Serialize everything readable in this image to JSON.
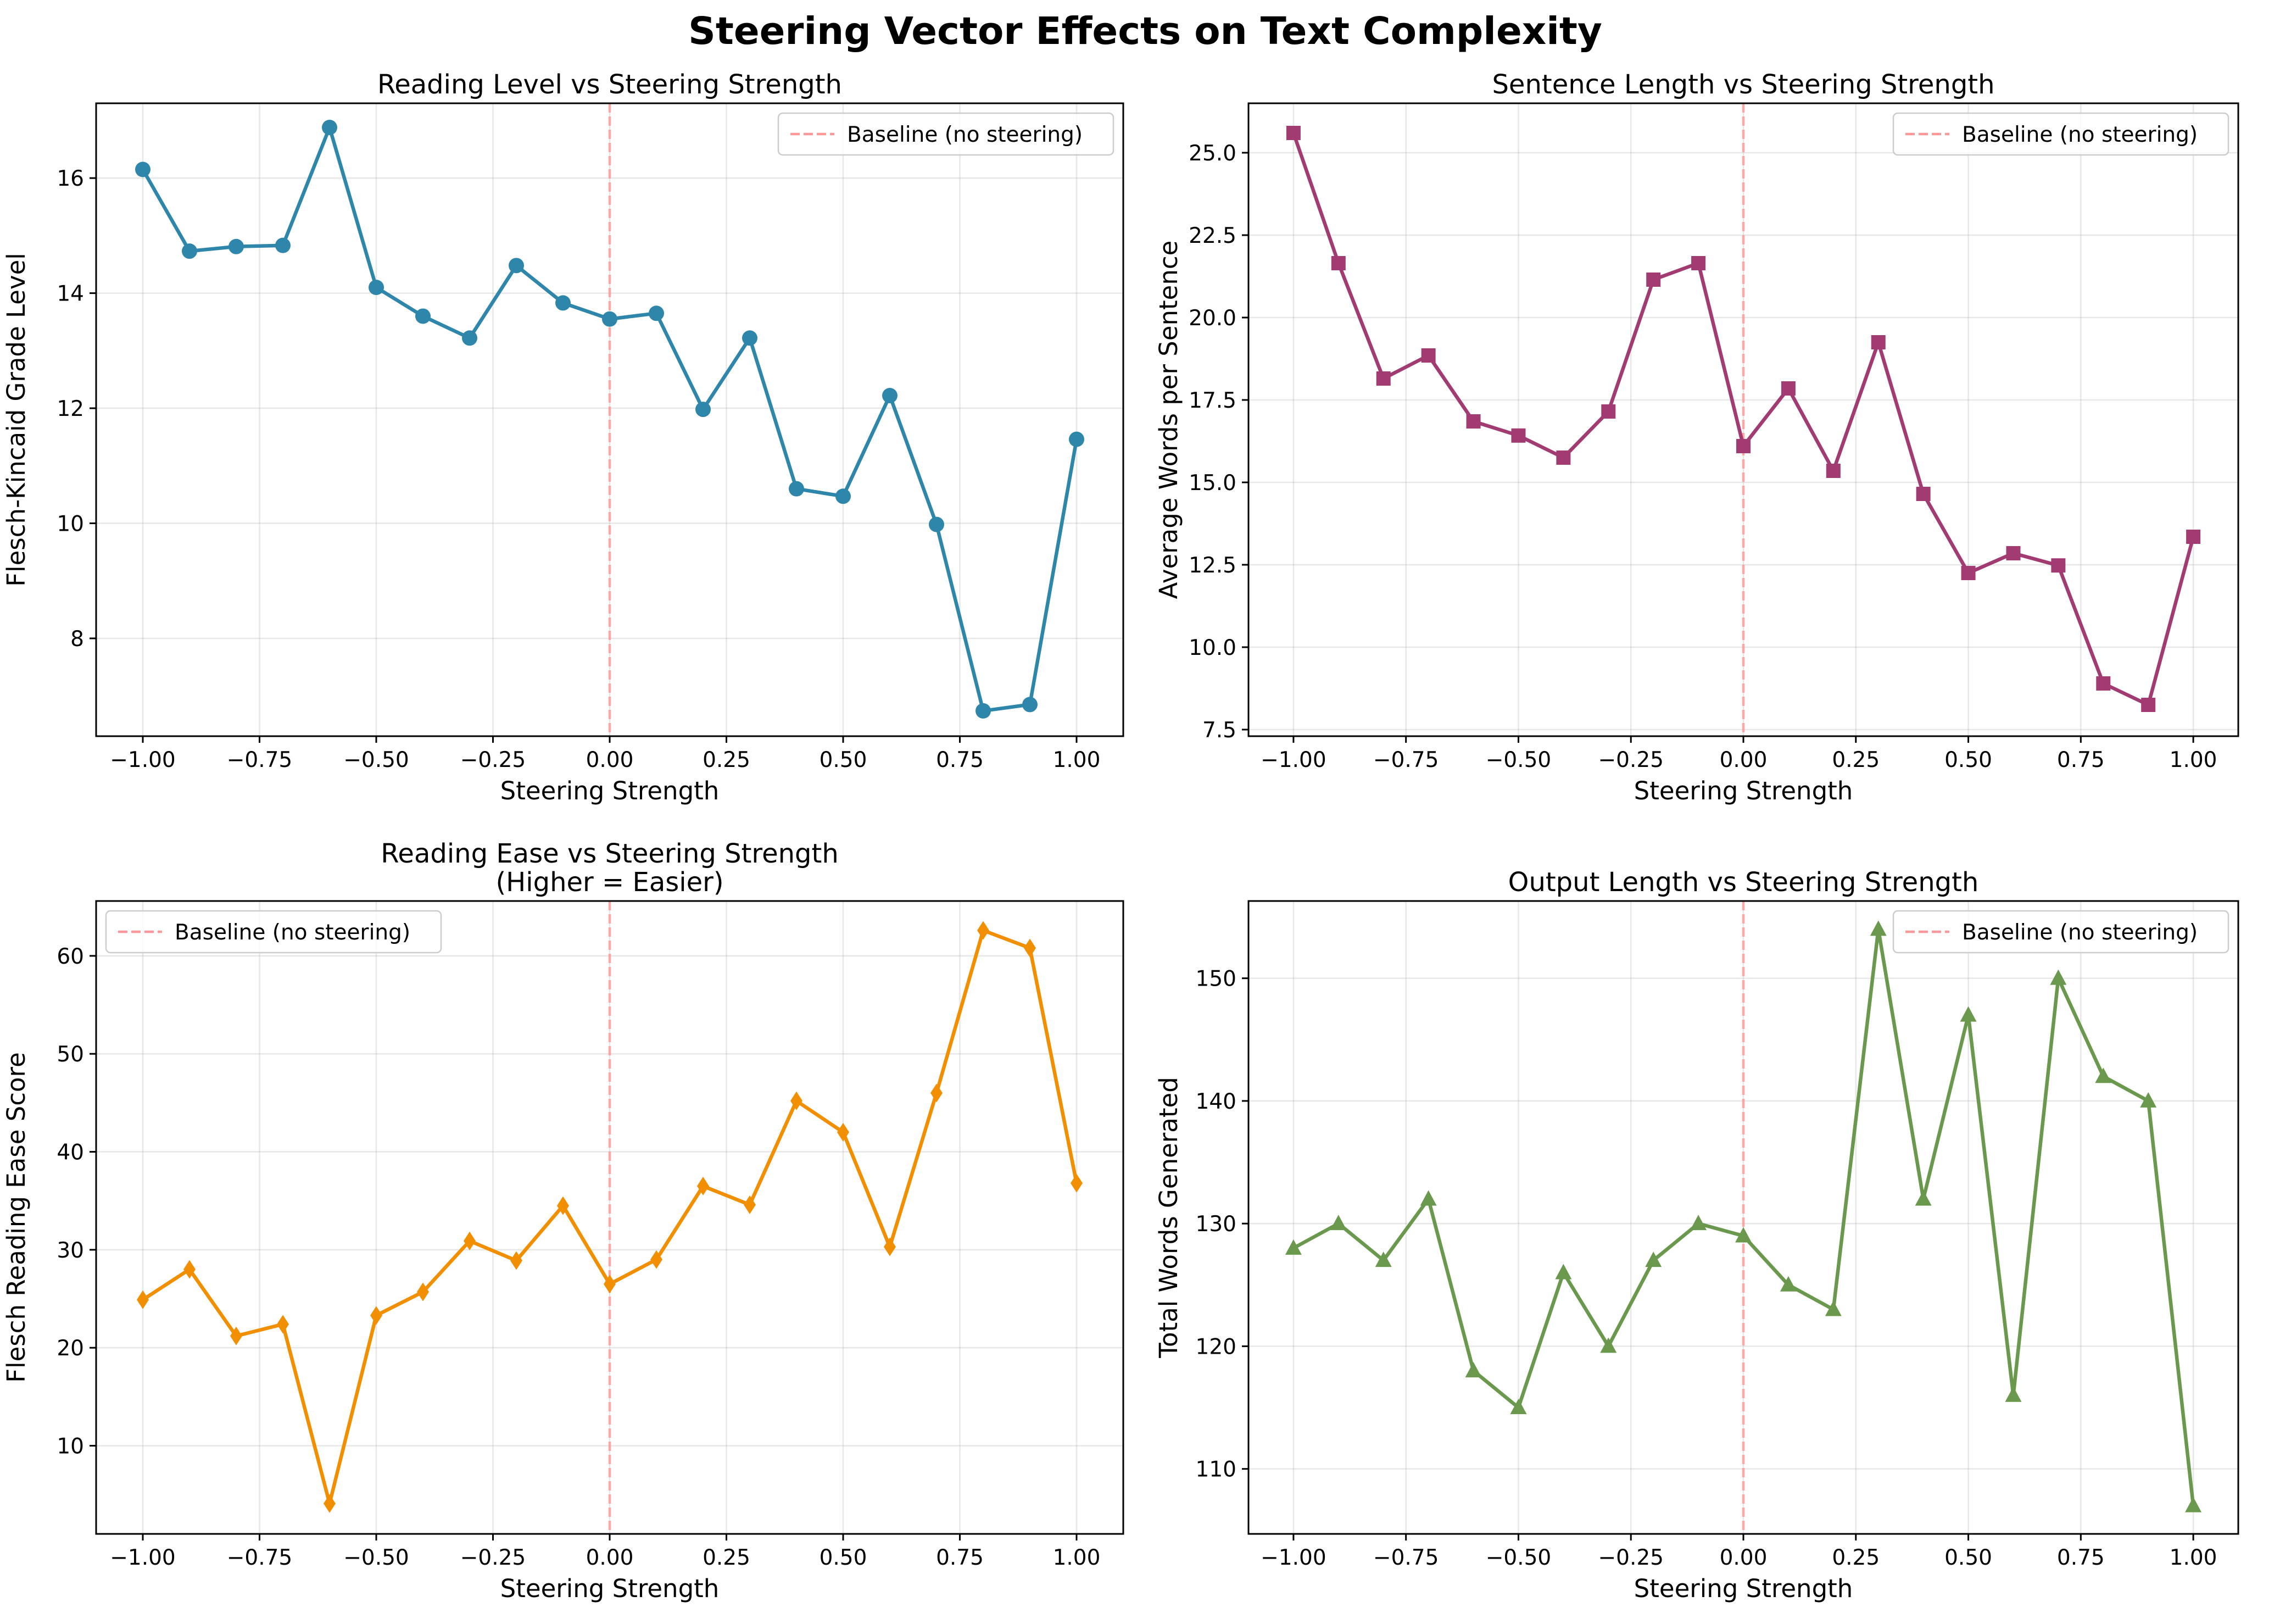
{
  "figure": {
    "title": "Steering Vector Effects on Text Complexity"
  },
  "chart_data": [
    {
      "type": "line",
      "title": "Reading Level vs Steering Strength",
      "xlabel": "Steering Strength",
      "ylabel": "Flesch-Kincaid Grade Level",
      "x": [
        -1.0,
        -0.9,
        -0.8,
        -0.7,
        -0.6,
        -0.5,
        -0.4,
        -0.3,
        -0.2,
        -0.1,
        0.0,
        0.1,
        0.2,
        0.3,
        0.4,
        0.5,
        0.6,
        0.7,
        0.8,
        0.9,
        1.0
      ],
      "series": [
        {
          "values": [
            16.15,
            14.73,
            14.81,
            14.83,
            16.88,
            14.1,
            13.6,
            13.22,
            14.48,
            13.83,
            13.55,
            13.65,
            11.98,
            13.22,
            10.6,
            10.47,
            12.22,
            9.98,
            6.74,
            6.85,
            11.46
          ],
          "color": "#2E86AB",
          "marker": "circle"
        }
      ],
      "xlim": [
        -1.1,
        1.1
      ],
      "ylim": [
        6.3,
        17.3
      ],
      "xticks": [
        -1.0,
        -0.75,
        -0.5,
        -0.25,
        0.0,
        0.25,
        0.5,
        0.75,
        1.0
      ],
      "xtick_labels": [
        "−1.00",
        "−0.75",
        "−0.50",
        "−0.25",
        "0.00",
        "0.25",
        "0.50",
        "0.75",
        "1.00"
      ],
      "yticks": [
        8,
        10,
        12,
        14,
        16
      ],
      "ytick_labels": [
        "8",
        "10",
        "12",
        "14",
        "16"
      ],
      "baseline": {
        "x": 0.0,
        "label": "Baseline (no steering)",
        "color": "#FF9999",
        "style": "dashed"
      },
      "legend_position": "top-right",
      "grid": true
    },
    {
      "type": "line",
      "title": "Sentence Length vs Steering Strength",
      "xlabel": "Steering Strength",
      "ylabel": "Average Words per Sentence",
      "x": [
        -1.0,
        -0.9,
        -0.8,
        -0.7,
        -0.6,
        -0.5,
        -0.4,
        -0.3,
        -0.2,
        -0.1,
        0.0,
        0.1,
        0.2,
        0.3,
        0.4,
        0.5,
        0.6,
        0.7,
        0.8,
        0.9,
        1.0
      ],
      "series": [
        {
          "values": [
            25.6,
            21.65,
            18.15,
            18.85,
            16.85,
            16.42,
            15.75,
            17.15,
            21.15,
            21.65,
            16.1,
            17.85,
            15.35,
            19.25,
            14.65,
            12.25,
            12.85,
            12.48,
            8.9,
            8.25,
            13.35
          ],
          "color": "#A23B72",
          "marker": "square"
        }
      ],
      "xlim": [
        -1.1,
        1.1
      ],
      "ylim": [
        7.3,
        26.5
      ],
      "xticks": [
        -1.0,
        -0.75,
        -0.5,
        -0.25,
        0.0,
        0.25,
        0.5,
        0.75,
        1.0
      ],
      "xtick_labels": [
        "−1.00",
        "−0.75",
        "−0.50",
        "−0.25",
        "0.00",
        "0.25",
        "0.50",
        "0.75",
        "1.00"
      ],
      "yticks": [
        7.5,
        10.0,
        12.5,
        15.0,
        17.5,
        20.0,
        22.5,
        25.0
      ],
      "ytick_labels": [
        "7.5",
        "10.0",
        "12.5",
        "15.0",
        "17.5",
        "20.0",
        "22.5",
        "25.0"
      ],
      "baseline": {
        "x": 0.0,
        "label": "Baseline (no steering)",
        "color": "#FF9999",
        "style": "dashed"
      },
      "legend_position": "top-right",
      "grid": true
    },
    {
      "type": "line",
      "title": "Reading Ease vs Steering Strength",
      "subtitle": "(Higher = Easier)",
      "xlabel": "Steering Strength",
      "ylabel": "Flesch Reading Ease Score",
      "x": [
        -1.0,
        -0.9,
        -0.8,
        -0.7,
        -0.6,
        -0.5,
        -0.4,
        -0.3,
        -0.2,
        -0.1,
        0.0,
        0.1,
        0.2,
        0.3,
        0.4,
        0.5,
        0.6,
        0.7,
        0.8,
        0.9,
        1.0
      ],
      "series": [
        {
          "values": [
            24.9,
            28.0,
            21.2,
            22.4,
            4.1,
            23.3,
            25.7,
            30.9,
            28.9,
            34.5,
            26.5,
            29.0,
            36.5,
            34.6,
            45.2,
            42.0,
            30.3,
            46.0,
            62.6,
            60.8,
            36.8
          ],
          "color": "#F18F01",
          "marker": "diamond"
        }
      ],
      "xlim": [
        -1.1,
        1.1
      ],
      "ylim": [
        1.0,
        65.6
      ],
      "xticks": [
        -1.0,
        -0.75,
        -0.5,
        -0.25,
        0.0,
        0.25,
        0.5,
        0.75,
        1.0
      ],
      "xtick_labels": [
        "−1.00",
        "−0.75",
        "−0.50",
        "−0.25",
        "0.00",
        "0.25",
        "0.50",
        "0.75",
        "1.00"
      ],
      "yticks": [
        10,
        20,
        30,
        40,
        50,
        60
      ],
      "ytick_labels": [
        "10",
        "20",
        "30",
        "40",
        "50",
        "60"
      ],
      "baseline": {
        "x": 0.0,
        "label": "Baseline (no steering)",
        "color": "#FF9999",
        "style": "dashed"
      },
      "legend_position": "top-left",
      "grid": true
    },
    {
      "type": "line",
      "title": "Output Length vs Steering Strength",
      "xlabel": "Steering Strength",
      "ylabel": "Total Words Generated",
      "x": [
        -1.0,
        -0.9,
        -0.8,
        -0.7,
        -0.6,
        -0.5,
        -0.4,
        -0.3,
        -0.2,
        -0.1,
        0.0,
        0.1,
        0.2,
        0.3,
        0.4,
        0.5,
        0.6,
        0.7,
        0.8,
        0.9,
        1.0
      ],
      "series": [
        {
          "values": [
            128,
            130,
            127,
            132,
            118,
            115,
            126,
            120,
            127,
            130,
            129,
            125,
            123,
            154,
            132,
            147,
            116,
            150,
            142,
            140,
            107
          ],
          "color": "#6A994E",
          "marker": "triangle"
        }
      ],
      "xlim": [
        -1.1,
        1.1
      ],
      "ylim": [
        104.7,
        156.3
      ],
      "xticks": [
        -1.0,
        -0.75,
        -0.5,
        -0.25,
        0.0,
        0.25,
        0.5,
        0.75,
        1.0
      ],
      "xtick_labels": [
        "−1.00",
        "−0.75",
        "−0.50",
        "−0.25",
        "0.00",
        "0.25",
        "0.50",
        "0.75",
        "1.00"
      ],
      "yticks": [
        110,
        120,
        130,
        140,
        150
      ],
      "ytick_labels": [
        "110",
        "120",
        "130",
        "140",
        "150"
      ],
      "baseline": {
        "x": 0.0,
        "label": "Baseline (no steering)",
        "color": "#FF9999",
        "style": "dashed"
      },
      "legend_position": "top-right",
      "grid": true
    }
  ]
}
